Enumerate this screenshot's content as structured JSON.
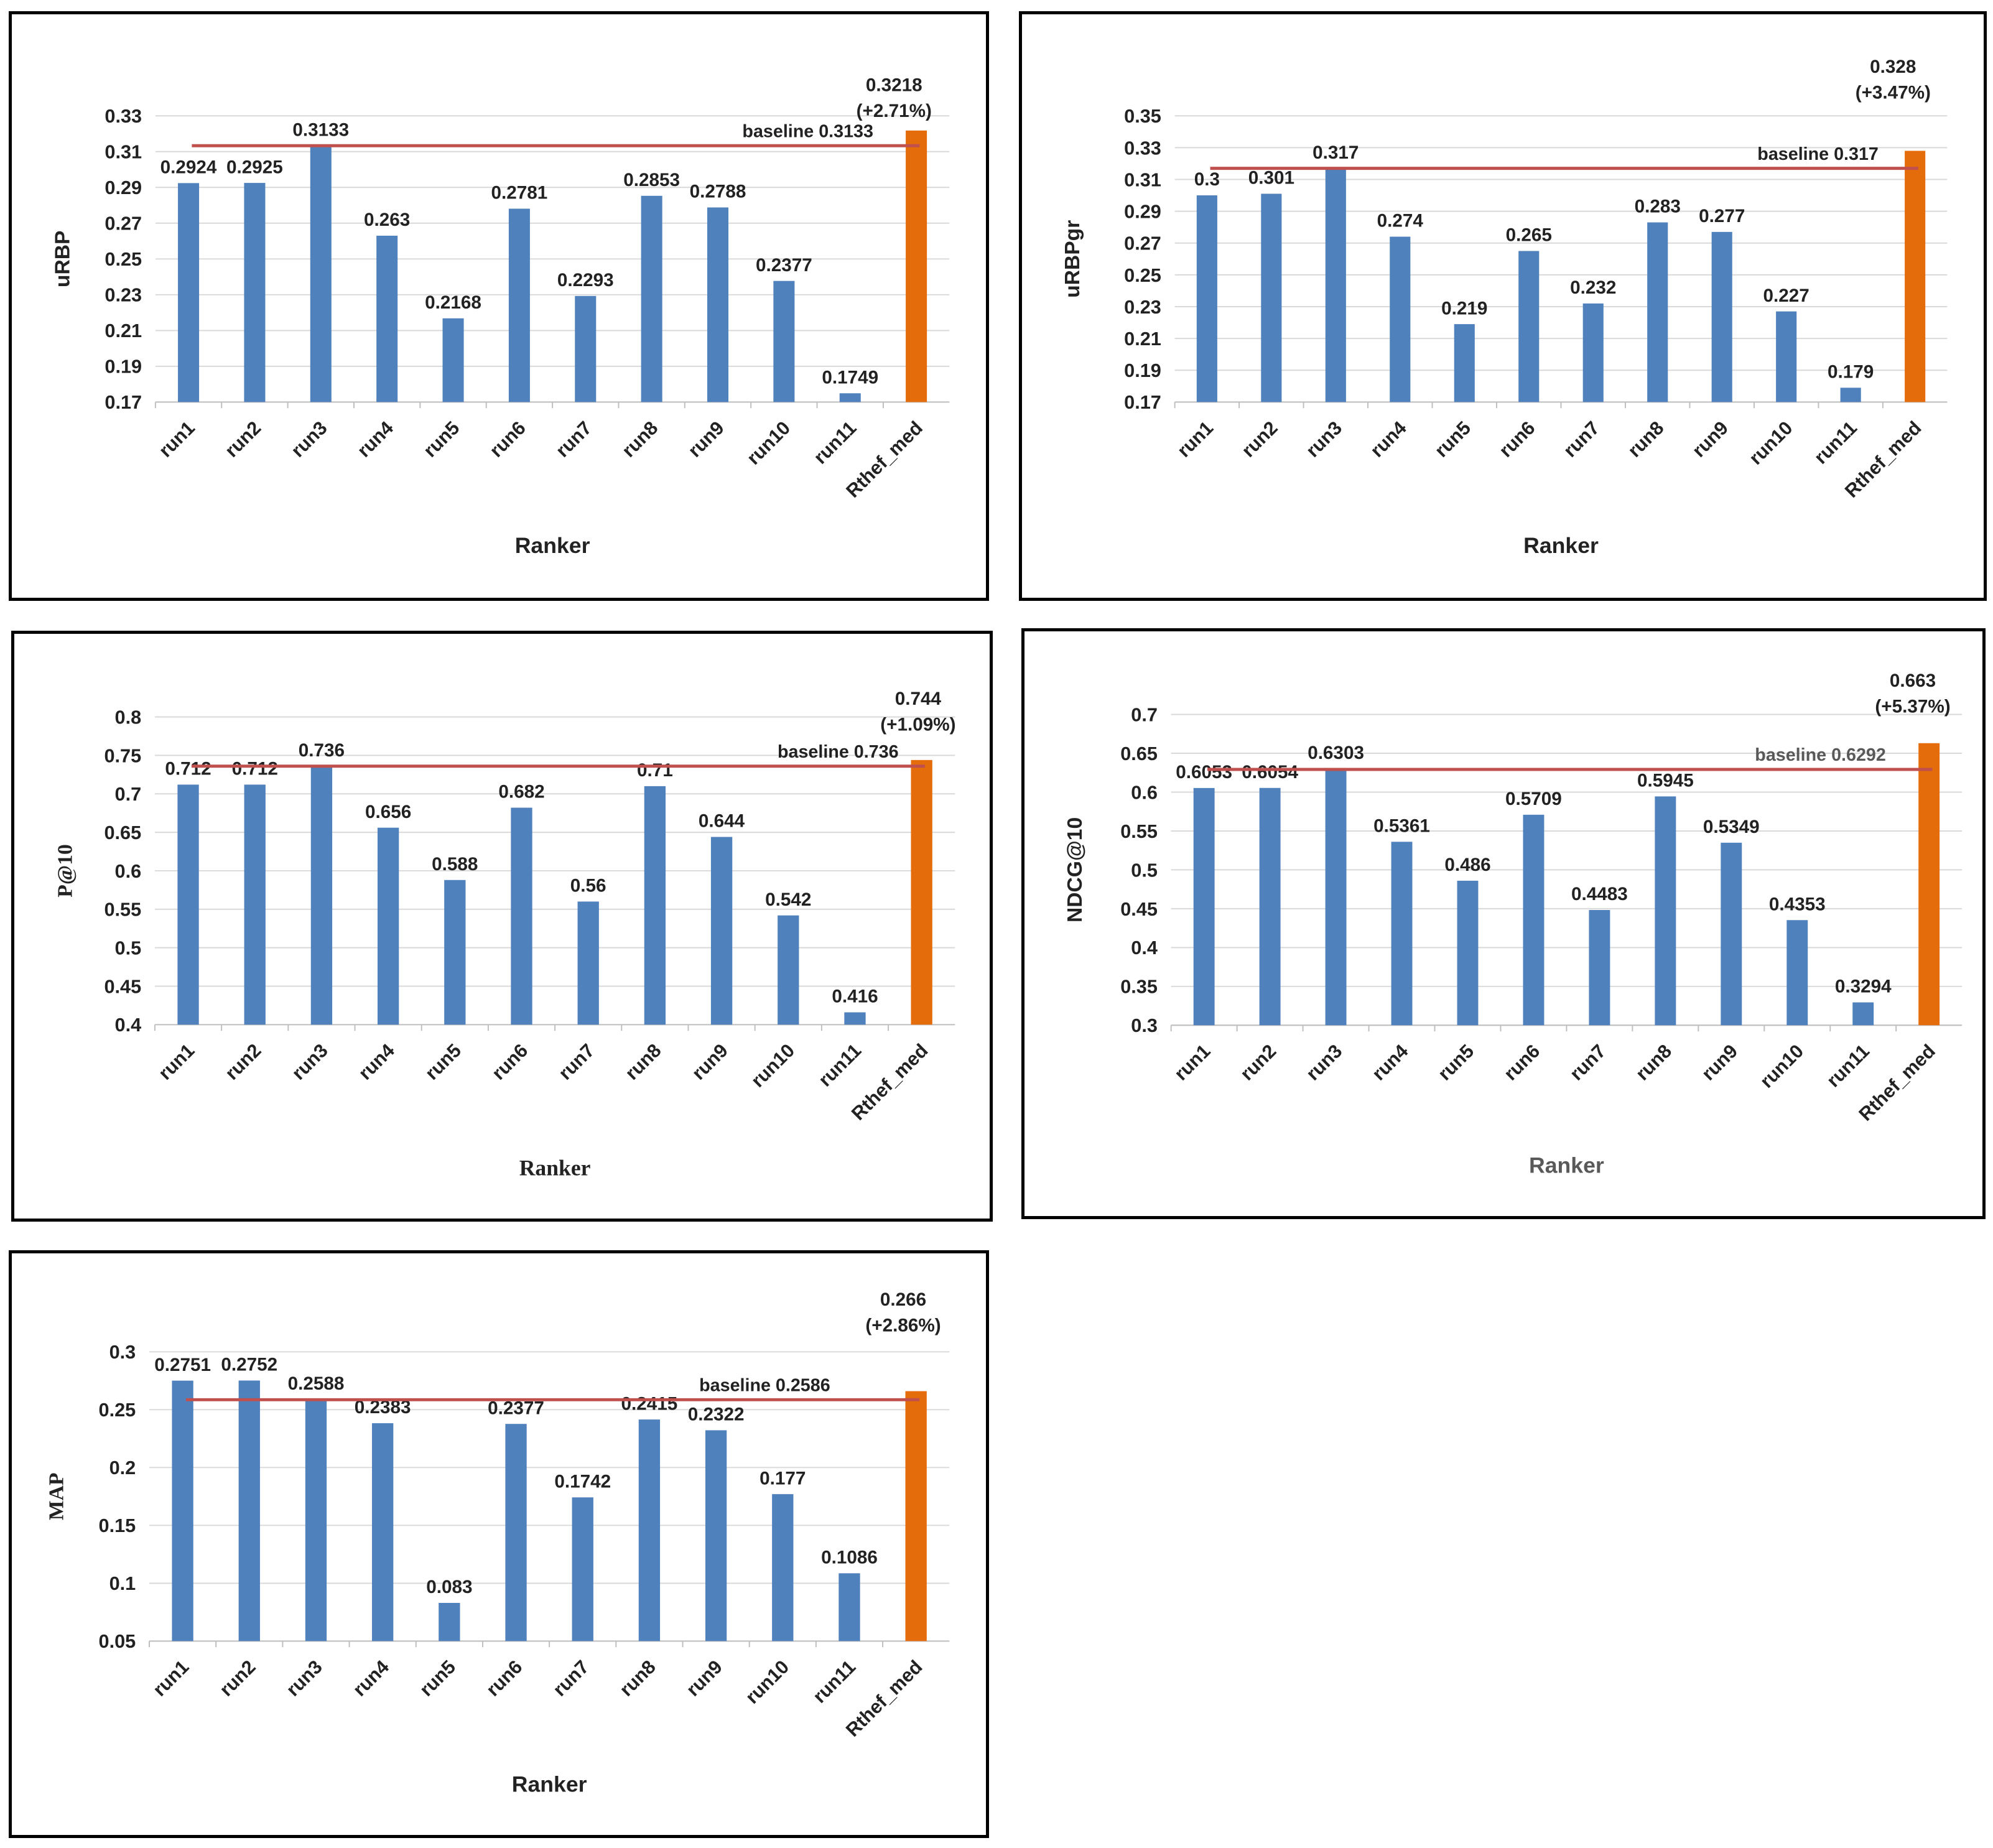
{
  "chart_data": [
    {
      "type": "bar",
      "title": "",
      "xlabel": "Ranker",
      "ylabel": "uRBP",
      "categories": [
        "run1",
        "run2",
        "run3",
        "run4",
        "run5",
        "run6",
        "run7",
        "run8",
        "run9",
        "run10",
        "run11",
        "Rthef_med"
      ],
      "values": [
        0.2924,
        0.2925,
        0.3133,
        0.263,
        0.2168,
        0.2781,
        0.2293,
        0.2853,
        0.2788,
        0.2377,
        0.1749,
        0.3218
      ],
      "value_labels": [
        "0.2924",
        "0.2925",
        "0.3133",
        "0.263",
        "0.2168",
        "0.2781",
        "0.2293",
        "0.2853",
        "0.2788",
        "0.2377",
        "0.1749",
        "0.3218"
      ],
      "highlight_label": "(+2.71%)",
      "ylim": [
        0.17,
        0.33
      ],
      "yticks": [
        "0.17",
        "0.19",
        "0.21",
        "0.23",
        "0.25",
        "0.27",
        "0.29",
        "0.31",
        "0.33"
      ],
      "baseline": {
        "value": 0.3133,
        "label": "baseline 0.3133"
      },
      "colors": {
        "bar": "#4f81bd",
        "highlight": "#e46c0a",
        "baseline": "#c0504d",
        "grid": "#d9d9d9"
      }
    },
    {
      "type": "bar",
      "title": "",
      "xlabel": "Ranker",
      "ylabel": "uRBPgr",
      "categories": [
        "run1",
        "run2",
        "run3",
        "run4",
        "run5",
        "run6",
        "run7",
        "run8",
        "run9",
        "run10",
        "run11",
        "Rthef_med"
      ],
      "values": [
        0.3,
        0.301,
        0.317,
        0.274,
        0.219,
        0.265,
        0.232,
        0.283,
        0.277,
        0.227,
        0.179,
        0.328
      ],
      "value_labels": [
        "0.3",
        "0.301",
        "0.317",
        "0.274",
        "0.219",
        "0.265",
        "0.232",
        "0.283",
        "0.277",
        "0.227",
        "0.179",
        "0.328"
      ],
      "highlight_label": "(+3.47%)",
      "ylim": [
        0.17,
        0.35
      ],
      "yticks": [
        "0.17",
        "0.19",
        "0.21",
        "0.23",
        "0.25",
        "0.27",
        "0.29",
        "0.31",
        "0.33",
        "0.35"
      ],
      "baseline": {
        "value": 0.317,
        "label": "baseline 0.317"
      },
      "colors": {
        "bar": "#4f81bd",
        "highlight": "#e46c0a",
        "baseline": "#c0504d",
        "grid": "#d9d9d9"
      }
    },
    {
      "type": "bar",
      "title": "",
      "xlabel": "Ranker",
      "ylabel": "P@10",
      "categories": [
        "run1",
        "run2",
        "run3",
        "run4",
        "run5",
        "run6",
        "run7",
        "run8",
        "run9",
        "run10",
        "run11",
        "Rthef_med"
      ],
      "values": [
        0.712,
        0.712,
        0.736,
        0.656,
        0.588,
        0.682,
        0.56,
        0.71,
        0.644,
        0.542,
        0.416,
        0.744
      ],
      "value_labels": [
        "0.712",
        "0.712",
        "0.736",
        "0.656",
        "0.588",
        "0.682",
        "0.56",
        "0.71",
        "0.644",
        "0.542",
        "0.416",
        "0.744"
      ],
      "highlight_label": "(+1.09%)",
      "ylim": [
        0.4,
        0.8
      ],
      "yticks": [
        "0.4",
        "0.45",
        "0.5",
        "0.55",
        "0.6",
        "0.65",
        "0.7",
        "0.75",
        "0.8"
      ],
      "baseline": {
        "value": 0.736,
        "label": "baseline 0.736"
      },
      "colors": {
        "bar": "#4f81bd",
        "highlight": "#e46c0a",
        "baseline": "#c0504d",
        "grid": "#d9d9d9"
      }
    },
    {
      "type": "bar",
      "title": "",
      "xlabel": "Ranker",
      "ylabel": "NDCG@10",
      "categories": [
        "run1",
        "run2",
        "run3",
        "run4",
        "run5",
        "run6",
        "run7",
        "run8",
        "run9",
        "run10",
        "run11",
        "Rthef_med"
      ],
      "values": [
        0.6053,
        0.6054,
        0.6303,
        0.5361,
        0.486,
        0.5709,
        0.4483,
        0.5945,
        0.5349,
        0.4353,
        0.3294,
        0.663
      ],
      "value_labels": [
        "0.6053",
        "0.6054",
        "0.6303",
        "0.5361",
        "0.486",
        "0.5709",
        "0.4483",
        "0.5945",
        "0.5349",
        "0.4353",
        "0.3294",
        "0.663"
      ],
      "highlight_label": "(+5.37%)",
      "ylim": [
        0.3,
        0.7
      ],
      "yticks": [
        "0.3",
        "0.35",
        "0.4",
        "0.45",
        "0.5",
        "0.55",
        "0.6",
        "0.65",
        "0.7"
      ],
      "baseline": {
        "value": 0.6292,
        "label": "baseline 0.6292"
      },
      "colors": {
        "bar": "#4f81bd",
        "highlight": "#e46c0a",
        "baseline": "#c0504d",
        "grid": "#d9d9d9"
      }
    },
    {
      "type": "bar",
      "title": "",
      "xlabel": "Ranker",
      "ylabel": "MAP",
      "categories": [
        "run1",
        "run2",
        "run3",
        "run4",
        "run5",
        "run6",
        "run7",
        "run8",
        "run9",
        "run10",
        "run11",
        "Rthef_med"
      ],
      "values": [
        0.2751,
        0.2752,
        0.2588,
        0.2383,
        0.083,
        0.2377,
        0.1742,
        0.2415,
        0.2322,
        0.177,
        0.1086,
        0.266
      ],
      "value_labels": [
        "0.2751",
        "0.2752",
        "0.2588",
        "0.2383",
        "0.083",
        "0.2377",
        "0.1742",
        "0.2415",
        "0.2322",
        "0.177",
        "0.1086",
        "0.266"
      ],
      "highlight_label": "(+2.86%)",
      "ylim": [
        0.05,
        0.3
      ],
      "yticks": [
        "0.05",
        "0.1",
        "0.15",
        "0.2",
        "0.25",
        "0.3"
      ],
      "baseline": {
        "value": 0.2586,
        "label": "baseline  0.2586"
      },
      "colors": {
        "bar": "#4f81bd",
        "highlight": "#e46c0a",
        "baseline": "#c0504d",
        "grid": "#d9d9d9"
      }
    }
  ]
}
